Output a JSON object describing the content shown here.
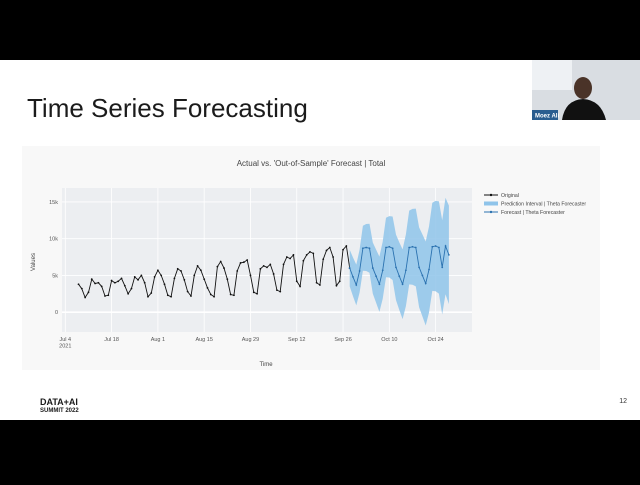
{
  "slide": {
    "title": "Time Series Forecasting",
    "logo_top": "DATA+AI",
    "logo_bottom": "SUMMIT 2022",
    "page": "12"
  },
  "speaker": {
    "name": "Moez Ali"
  },
  "chart_data": {
    "type": "forecast",
    "title": "Actual vs. 'Out-of-Sample' Forecast | Total",
    "x_label": "Time",
    "y_label": "Values",
    "xlim": [
      "2021-07-03",
      "2021-11-04"
    ],
    "xticks": [
      {
        "value": "2021-07-04",
        "label": "Jul 4\n2021"
      },
      {
        "value": "2021-07-18",
        "label": "Jul 18"
      },
      {
        "value": "2021-08-01",
        "label": "Aug 1"
      },
      {
        "value": "2021-08-15",
        "label": "Aug 15"
      },
      {
        "value": "2021-08-29",
        "label": "Aug 29"
      },
      {
        "value": "2021-09-12",
        "label": "Sep 12"
      },
      {
        "value": "2021-09-26",
        "label": "Sep 26"
      },
      {
        "value": "2021-10-10",
        "label": "Oct 10"
      },
      {
        "value": "2021-10-24",
        "label": "Oct 24"
      }
    ],
    "ylim": [
      -2700,
      16900
    ],
    "yticks": [
      0,
      {
        "value": 5000,
        "label": "5k"
      },
      {
        "value": 10000,
        "label": "10k"
      },
      {
        "value": 15000,
        "label": "15k"
      }
    ],
    "grid": true,
    "series": [
      {
        "name": "Original",
        "color": "#111111",
        "x": [
          "2021-07-08",
          "2021-07-09",
          "2021-07-10",
          "2021-07-11",
          "2021-07-12",
          "2021-07-13",
          "2021-07-14",
          "2021-07-15",
          "2021-07-16",
          "2021-07-17",
          "2021-07-18",
          "2021-07-19",
          "2021-07-20",
          "2021-07-21",
          "2021-07-22",
          "2021-07-23",
          "2021-07-24",
          "2021-07-25",
          "2021-07-26",
          "2021-07-27",
          "2021-07-28",
          "2021-07-29",
          "2021-07-30",
          "2021-07-31",
          "2021-08-01",
          "2021-08-02",
          "2021-08-03",
          "2021-08-04",
          "2021-08-05",
          "2021-08-06",
          "2021-08-07",
          "2021-08-08",
          "2021-08-09",
          "2021-08-10",
          "2021-08-11",
          "2021-08-12",
          "2021-08-13",
          "2021-08-14",
          "2021-08-15",
          "2021-08-16",
          "2021-08-17",
          "2021-08-18",
          "2021-08-19",
          "2021-08-20",
          "2021-08-21",
          "2021-08-22",
          "2021-08-23",
          "2021-08-24",
          "2021-08-25",
          "2021-08-26",
          "2021-08-27",
          "2021-08-28",
          "2021-08-29",
          "2021-08-30",
          "2021-08-31",
          "2021-09-01",
          "2021-09-02",
          "2021-09-03",
          "2021-09-04",
          "2021-09-05",
          "2021-09-06",
          "2021-09-07",
          "2021-09-08",
          "2021-09-09",
          "2021-09-10",
          "2021-09-11",
          "2021-09-12",
          "2021-09-13",
          "2021-09-14",
          "2021-09-15",
          "2021-09-16",
          "2021-09-17",
          "2021-09-18",
          "2021-09-19",
          "2021-09-20",
          "2021-09-21",
          "2021-09-22",
          "2021-09-23",
          "2021-09-24",
          "2021-09-25",
          "2021-09-26",
          "2021-09-27",
          "2021-09-28"
        ],
        "values": [
          3800,
          3200,
          2000,
          2700,
          4500,
          3900,
          4000,
          3500,
          2200,
          2300,
          4300,
          4000,
          4200,
          4600,
          3600,
          2500,
          3200,
          4800,
          4400,
          5000,
          4000,
          2100,
          2600,
          4800,
          5700,
          5000,
          3800,
          2300,
          2100,
          4600,
          5900,
          5600,
          4400,
          2800,
          2200,
          5000,
          6300,
          5700,
          4500,
          3300,
          2400,
          2100,
          6200,
          6900,
          6000,
          4500,
          2400,
          2300,
          5600,
          6700,
          6800,
          7100,
          5000,
          2700,
          2500,
          5900,
          6300,
          6100,
          6500,
          5200,
          3000,
          2800,
          6500,
          7500,
          7300,
          7800,
          4200,
          3500,
          7000,
          7800,
          8200,
          8000,
          4000,
          3700,
          7200,
          8400,
          8800,
          7500,
          3600,
          4200,
          8500,
          9000,
          6000
        ]
      },
      {
        "name": "Prediction Interval | Theta Forecaster",
        "color": "#8fc4ea",
        "x": [
          "2021-09-28",
          "2021-09-29",
          "2021-09-30",
          "2021-10-01",
          "2021-10-02",
          "2021-10-03",
          "2021-10-04",
          "2021-10-05",
          "2021-10-06",
          "2021-10-07",
          "2021-10-08",
          "2021-10-09",
          "2021-10-10",
          "2021-10-11",
          "2021-10-12",
          "2021-10-13",
          "2021-10-14",
          "2021-10-15",
          "2021-10-16",
          "2021-10-17",
          "2021-10-18",
          "2021-10-19",
          "2021-10-20",
          "2021-10-21",
          "2021-10-22",
          "2021-10-23",
          "2021-10-24",
          "2021-10-25",
          "2021-10-26",
          "2021-10-27",
          "2021-10-28"
        ],
        "lower": [
          3500,
          2160,
          920,
          2680,
          5640,
          5600,
          5360,
          2520,
          1280,
          40,
          1800,
          4760,
          4720,
          4380,
          1640,
          300,
          -940,
          820,
          3780,
          3740,
          3500,
          660,
          -580,
          -1820,
          -60,
          2900,
          2860,
          2520,
          -320,
          2440,
          1100
        ],
        "upper": [
          8500,
          7440,
          6480,
          8520,
          11760,
          12000,
          12040,
          9480,
          8520,
          7560,
          9600,
          12840,
          13080,
          13020,
          10560,
          9500,
          8540,
          10580,
          13820,
          14060,
          14100,
          11540,
          10580,
          9620,
          11660,
          14900,
          15140,
          15080,
          12520,
          15560,
          14500
        ]
      },
      {
        "name": "Forecast | Theta Forecaster",
        "color": "#2b72b0",
        "x": [
          "2021-09-28",
          "2021-09-29",
          "2021-09-30",
          "2021-10-01",
          "2021-10-02",
          "2021-10-03",
          "2021-10-04",
          "2021-10-05",
          "2021-10-06",
          "2021-10-07",
          "2021-10-08",
          "2021-10-09",
          "2021-10-10",
          "2021-10-11",
          "2021-10-12",
          "2021-10-13",
          "2021-10-14",
          "2021-10-15",
          "2021-10-16",
          "2021-10-17",
          "2021-10-18",
          "2021-10-19",
          "2021-10-20",
          "2021-10-21",
          "2021-10-22",
          "2021-10-23",
          "2021-10-24",
          "2021-10-25",
          "2021-10-26",
          "2021-10-27",
          "2021-10-28"
        ],
        "values": [
          6000,
          4800,
          3700,
          5600,
          8700,
          8800,
          8700,
          6000,
          4900,
          3800,
          5700,
          8800,
          8900,
          8700,
          6100,
          4900,
          3800,
          5700,
          8800,
          8900,
          8800,
          6100,
          5000,
          3900,
          5800,
          8900,
          9000,
          8800,
          6100,
          9000,
          7800
        ]
      }
    ]
  }
}
